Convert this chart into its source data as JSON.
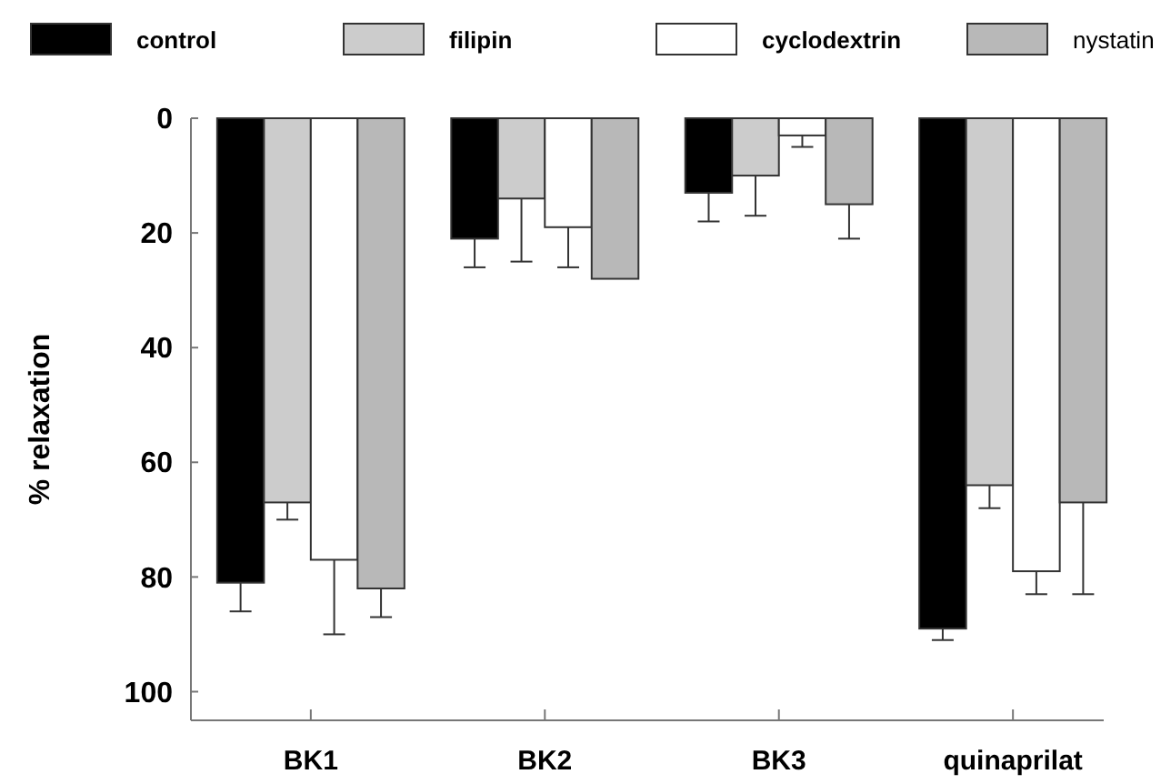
{
  "chart_data": {
    "type": "bar",
    "ylabel": "% relaxation",
    "categories": [
      "BK1",
      "BK2",
      "BK3",
      "quinaprilat"
    ],
    "ylim": [
      105,
      0
    ],
    "yticks": [
      0,
      20,
      40,
      60,
      80,
      100
    ],
    "legend": "top",
    "grid": false,
    "series": [
      {
        "name": "control",
        "color": "#000000",
        "values": [
          81,
          21,
          13,
          89
        ],
        "errors": [
          [
            81,
            86
          ],
          [
            21,
            26
          ],
          [
            13,
            18
          ],
          [
            89,
            91
          ]
        ]
      },
      {
        "name": "filipin",
        "color": "#cccccc",
        "values": [
          67,
          14,
          10,
          64
        ],
        "errors": [
          [
            67,
            70
          ],
          [
            14,
            25
          ],
          [
            10,
            17
          ],
          [
            64,
            68
          ]
        ]
      },
      {
        "name": "cyclodextrin",
        "color": "#ffffff",
        "values": [
          77,
          19,
          3,
          79
        ],
        "errors": [
          [
            77,
            90
          ],
          [
            19,
            26
          ],
          [
            3,
            5
          ],
          [
            79,
            83
          ]
        ]
      },
      {
        "name": "nystatin",
        "color": "#b8b8b8",
        "values": [
          82,
          28,
          15,
          67
        ],
        "errors": [
          [
            82,
            87
          ],
          null,
          [
            15,
            21
          ],
          [
            67,
            83
          ]
        ]
      }
    ]
  }
}
